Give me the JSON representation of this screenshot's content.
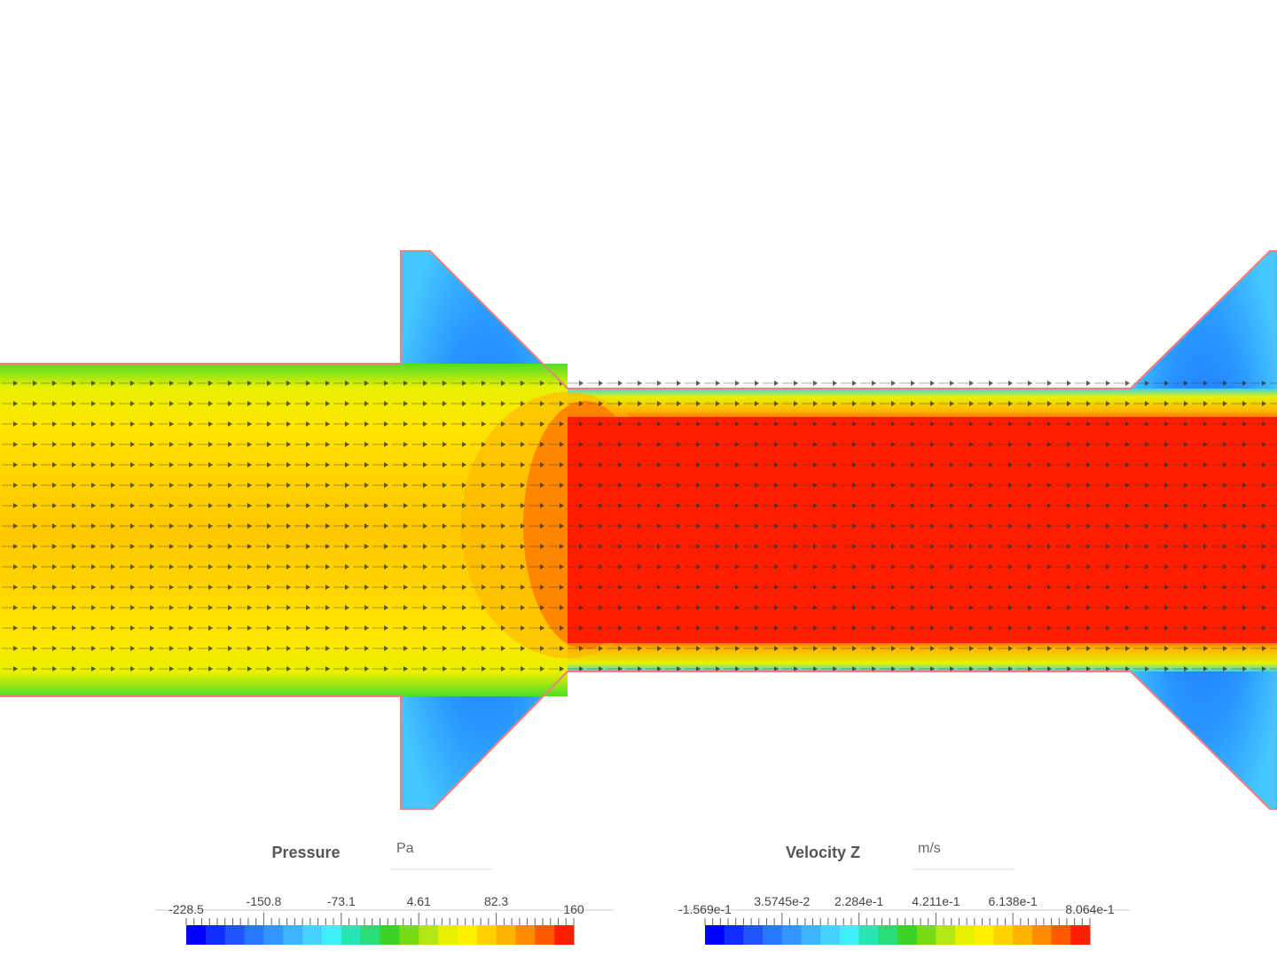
{
  "colormap": [
    "#0000ff",
    "#0f2dff",
    "#1e55ff",
    "#2878ff",
    "#3296ff",
    "#3cb4ff",
    "#46d2ff",
    "#3cf0f5",
    "#28e6b4",
    "#28dc78",
    "#3cd228",
    "#78dc14",
    "#b4e614",
    "#e6f000",
    "#fff000",
    "#ffd200",
    "#ffb400",
    "#ff8c00",
    "#ff5a00",
    "#ff1e00"
  ],
  "legends": [
    {
      "title": "Pressure",
      "unit": "Pa",
      "ticks": [
        "-228.5",
        "-150.8",
        "-73.1",
        "4.61",
        "82.3",
        "160"
      ]
    },
    {
      "title": "Velocity Z",
      "unit": "m/s",
      "ticks": [
        "-1.569e-1",
        "3.5745e-2",
        "2.284e-1",
        "4.211e-1",
        "6.138e-1",
        "8.064e-1"
      ]
    }
  ]
}
